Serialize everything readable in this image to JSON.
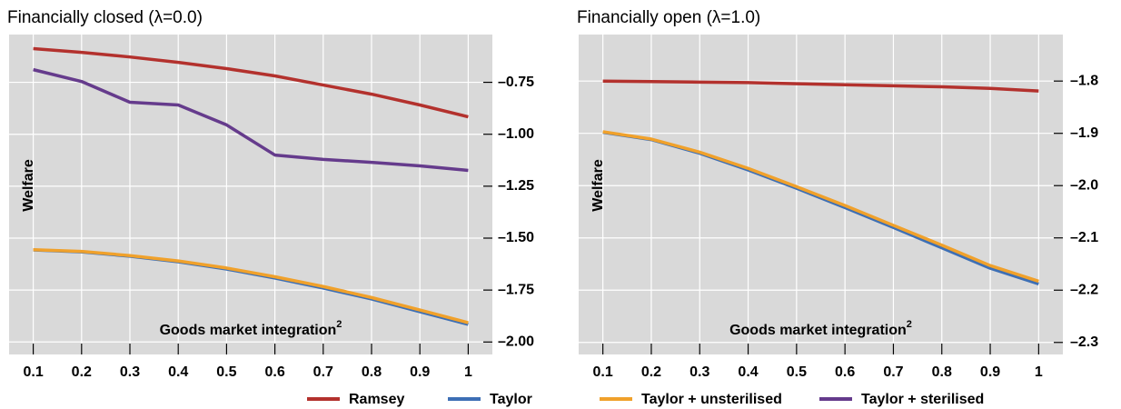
{
  "chart_data": [
    {
      "type": "line",
      "title": "Financially closed (λ=0.0)",
      "ylabel": "Welfare",
      "xlabel": "Goods market integration",
      "xlabel_sup": "2",
      "x": [
        0.1,
        0.2,
        0.3,
        0.4,
        0.5,
        0.6,
        0.7,
        0.8,
        0.9,
        1
      ],
      "xlim": [
        0.05,
        1.05
      ],
      "xticks": [
        0.1,
        0.2,
        0.3,
        0.4,
        0.5,
        0.6,
        0.7,
        0.8,
        0.9,
        1
      ],
      "ylim": [
        -2.06,
        -0.52
      ],
      "yticks": [
        {
          "value": -0.75,
          "label": "–0.75"
        },
        {
          "value": -1.0,
          "label": "–1.00"
        },
        {
          "value": -1.25,
          "label": "–1.25"
        },
        {
          "value": -1.5,
          "label": "–1.50"
        },
        {
          "value": -1.75,
          "label": "–1.75"
        },
        {
          "value": -2.0,
          "label": "–2.00"
        }
      ],
      "grid": true,
      "series": [
        {
          "name": "Ramsey",
          "color": "#b3312d",
          "values": [
            -0.588,
            -0.606,
            -0.628,
            -0.654,
            -0.684,
            -0.719,
            -0.763,
            -0.807,
            -0.859,
            -0.916
          ]
        },
        {
          "name": "Taylor",
          "color": "#3d6fb5",
          "values": [
            -1.557,
            -1.566,
            -1.587,
            -1.614,
            -1.649,
            -1.692,
            -1.74,
            -1.793,
            -1.854,
            -1.915
          ]
        },
        {
          "name": "Taylor + unsterilised",
          "color": "#f0a12b",
          "values": [
            -1.556,
            -1.564,
            -1.584,
            -1.61,
            -1.644,
            -1.686,
            -1.733,
            -1.786,
            -1.846,
            -1.907
          ]
        },
        {
          "name": "Taylor + sterilised",
          "color": "#653b8c",
          "values": [
            -0.689,
            -0.746,
            -0.846,
            -0.859,
            -0.955,
            -1.1,
            -1.121,
            -1.135,
            -1.152,
            -1.174
          ]
        }
      ]
    },
    {
      "type": "line",
      "title": "Financially open (λ=1.0)",
      "ylabel": "Welfare",
      "xlabel": "Goods market integration",
      "xlabel_sup": "2",
      "x": [
        0.1,
        0.2,
        0.3,
        0.4,
        0.5,
        0.6,
        0.7,
        0.8,
        0.9,
        1
      ],
      "xlim": [
        0.05,
        1.05
      ],
      "xticks": [
        0.1,
        0.2,
        0.3,
        0.4,
        0.5,
        0.6,
        0.7,
        0.8,
        0.9,
        1
      ],
      "ylim": [
        -2.323,
        -1.711
      ],
      "yticks": [
        {
          "value": -1.8,
          "label": "–1.8"
        },
        {
          "value": -1.9,
          "label": "–1.9"
        },
        {
          "value": -2.0,
          "label": "–2.0"
        },
        {
          "value": -2.1,
          "label": "–2.1"
        },
        {
          "value": -2.2,
          "label": "–2.2"
        },
        {
          "value": -2.3,
          "label": "–2.3"
        }
      ],
      "grid": true,
      "series": [
        {
          "name": "Ramsey",
          "color": "#b3312d",
          "values": [
            -1.8,
            -1.801,
            -1.802,
            -1.803,
            -1.805,
            -1.807,
            -1.809,
            -1.811,
            -1.814,
            -1.819
          ]
        },
        {
          "name": "Taylor",
          "color": "#3d6fb5",
          "values": [
            -1.898,
            -1.912,
            -1.938,
            -1.97,
            -2.005,
            -2.042,
            -2.08,
            -2.119,
            -2.158,
            -2.188
          ]
        },
        {
          "name": "Taylor + unsterilised",
          "color": "#f0a12b",
          "values": [
            -1.897,
            -1.911,
            -1.936,
            -1.967,
            -2.002,
            -2.038,
            -2.076,
            -2.114,
            -2.153,
            -2.183
          ]
        }
      ]
    }
  ]
}
